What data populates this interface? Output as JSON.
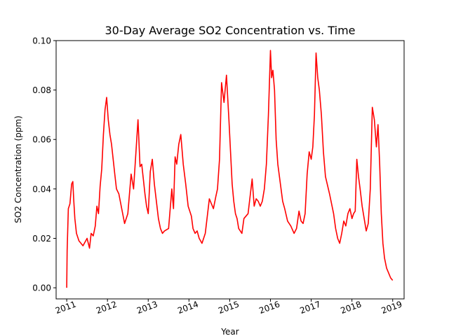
{
  "chart_data": {
    "type": "line",
    "title": "30-Day Average SO2 Concentration vs. Time",
    "xlabel": "Year",
    "ylabel": "SO2 Concentration (ppm)",
    "xlim": [
      2010.74,
      2019.28
    ],
    "ylim": [
      -0.0045,
      0.1
    ],
    "x_ticks": [
      2011,
      2012,
      2013,
      2014,
      2015,
      2016,
      2017,
      2018,
      2019
    ],
    "x_tick_labels": [
      "2011",
      "2012",
      "2013",
      "2014",
      "2015",
      "2016",
      "2017",
      "2018",
      "2019"
    ],
    "y_ticks": [
      0.0,
      0.02,
      0.04,
      0.06,
      0.08,
      0.1
    ],
    "y_tick_labels": [
      "0.00",
      "0.02",
      "0.04",
      "0.06",
      "0.08",
      "0.10"
    ],
    "grid": false,
    "legend": "none",
    "series": [
      {
        "color": "#ff0000",
        "x": [
          2011.0,
          2011.01,
          2011.04,
          2011.08,
          2011.12,
          2011.15,
          2011.17,
          2011.2,
          2011.24,
          2011.3,
          2011.4,
          2011.5,
          2011.56,
          2011.6,
          2011.65,
          2011.7,
          2011.74,
          2011.78,
          2011.82,
          2011.86,
          2011.9,
          2011.94,
          2011.98,
          2012.02,
          2012.06,
          2012.1,
          2012.14,
          2012.18,
          2012.22,
          2012.28,
          2012.35,
          2012.42,
          2012.5,
          2012.58,
          2012.64,
          2012.7,
          2012.75,
          2012.8,
          2012.84,
          2012.88,
          2012.92,
          2012.96,
          2013.0,
          2013.05,
          2013.1,
          2013.15,
          2013.2,
          2013.25,
          2013.3,
          2013.35,
          2013.4,
          2013.5,
          2013.58,
          2013.62,
          2013.66,
          2013.7,
          2013.75,
          2013.8,
          2013.86,
          2013.92,
          2013.98,
          2014.02,
          2014.06,
          2014.1,
          2014.15,
          2014.2,
          2014.25,
          2014.32,
          2014.4,
          2014.5,
          2014.6,
          2014.66,
          2014.7,
          2014.75,
          2014.8,
          2014.86,
          2014.92,
          2014.98,
          2015.02,
          2015.06,
          2015.1,
          2015.14,
          2015.18,
          2015.22,
          2015.26,
          2015.3,
          2015.35,
          2015.45,
          2015.55,
          2015.6,
          2015.65,
          2015.7,
          2015.75,
          2015.8,
          2015.85,
          2015.9,
          2015.95,
          2016.0,
          2016.03,
          2016.06,
          2016.1,
          2016.14,
          2016.18,
          2016.22,
          2016.26,
          2016.3,
          2016.35,
          2016.42,
          2016.5,
          2016.58,
          2016.64,
          2016.7,
          2016.75,
          2016.8,
          2016.85,
          2016.9,
          2016.95,
          2017.0,
          2017.04,
          2017.08,
          2017.12,
          2017.16,
          2017.2,
          2017.25,
          2017.3,
          2017.35,
          2017.45,
          2017.55,
          2017.6,
          2017.65,
          2017.7,
          2017.75,
          2017.8,
          2017.85,
          2017.9,
          2017.95,
          2018.0,
          2018.04,
          2018.08,
          2018.12,
          2018.16,
          2018.2,
          2018.25,
          2018.3,
          2018.35,
          2018.4,
          2018.45,
          2018.5,
          2018.55,
          2018.6,
          2018.64,
          2018.68,
          2018.72,
          2018.76,
          2018.8,
          2018.85,
          2018.9,
          2018.95,
          2019.0
        ],
        "y": [
          0.0,
          0.015,
          0.032,
          0.034,
          0.042,
          0.043,
          0.036,
          0.028,
          0.022,
          0.019,
          0.017,
          0.02,
          0.016,
          0.022,
          0.021,
          0.025,
          0.033,
          0.03,
          0.041,
          0.048,
          0.062,
          0.072,
          0.077,
          0.068,
          0.062,
          0.058,
          0.052,
          0.046,
          0.04,
          0.038,
          0.032,
          0.026,
          0.03,
          0.046,
          0.04,
          0.055,
          0.068,
          0.049,
          0.05,
          0.044,
          0.038,
          0.033,
          0.03,
          0.047,
          0.052,
          0.042,
          0.035,
          0.028,
          0.024,
          0.022,
          0.023,
          0.024,
          0.04,
          0.032,
          0.053,
          0.05,
          0.058,
          0.062,
          0.05,
          0.042,
          0.033,
          0.031,
          0.029,
          0.024,
          0.022,
          0.023,
          0.02,
          0.018,
          0.022,
          0.036,
          0.032,
          0.037,
          0.04,
          0.052,
          0.083,
          0.075,
          0.086,
          0.068,
          0.055,
          0.042,
          0.035,
          0.03,
          0.028,
          0.024,
          0.023,
          0.022,
          0.028,
          0.03,
          0.044,
          0.033,
          0.036,
          0.035,
          0.033,
          0.035,
          0.04,
          0.05,
          0.07,
          0.096,
          0.085,
          0.088,
          0.08,
          0.06,
          0.05,
          0.045,
          0.04,
          0.035,
          0.032,
          0.027,
          0.025,
          0.022,
          0.024,
          0.031,
          0.027,
          0.026,
          0.03,
          0.046,
          0.055,
          0.052,
          0.057,
          0.07,
          0.095,
          0.085,
          0.08,
          0.07,
          0.055,
          0.045,
          0.038,
          0.03,
          0.024,
          0.02,
          0.018,
          0.022,
          0.027,
          0.025,
          0.03,
          0.032,
          0.028,
          0.03,
          0.031,
          0.052,
          0.045,
          0.04,
          0.033,
          0.028,
          0.023,
          0.026,
          0.04,
          0.073,
          0.068,
          0.057,
          0.066,
          0.05,
          0.03,
          0.018,
          0.012,
          0.008,
          0.006,
          0.004,
          0.003
        ]
      }
    ]
  }
}
